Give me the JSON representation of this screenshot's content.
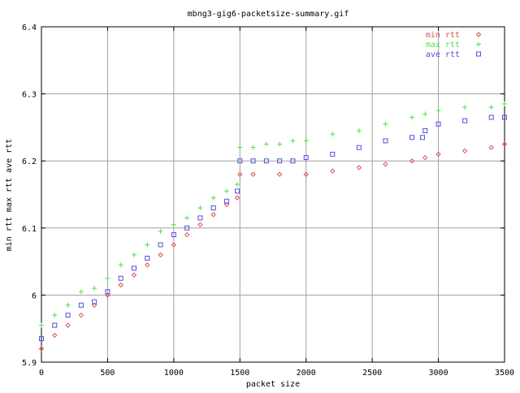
{
  "chart_data": {
    "type": "scatter",
    "title": "mbng3-gig6-packetsize-summary.gif",
    "xlabel": "packet size",
    "ylabel": "min rtt max rtt ave rtt",
    "xlim": [
      0,
      3500
    ],
    "ylim": [
      5.9,
      6.4
    ],
    "xticks": [
      "0",
      "500",
      "1000",
      "1500",
      "2000",
      "2500",
      "3000",
      "3500"
    ],
    "yticks": [
      "5.9",
      "6",
      "6.1",
      "6.2",
      "6.3",
      "6.4"
    ],
    "grid": true,
    "legend_position": "top-right",
    "series": [
      {
        "name": "min rtt",
        "marker": "diamond",
        "color": "#e05050",
        "x": [
          0,
          100,
          200,
          300,
          400,
          500,
          600,
          700,
          800,
          900,
          1000,
          1100,
          1200,
          1300,
          1400,
          1480,
          1500,
          1600,
          1800,
          2000,
          2200,
          2400,
          2600,
          2800,
          2900,
          3000,
          3200,
          3400,
          3500
        ],
        "y": [
          5.92,
          5.94,
          5.955,
          5.97,
          5.985,
          6.0,
          6.015,
          6.03,
          6.045,
          6.06,
          6.075,
          6.09,
          6.105,
          6.12,
          6.135,
          6.145,
          6.18,
          6.18,
          6.18,
          6.18,
          6.185,
          6.19,
          6.195,
          6.2,
          6.205,
          6.21,
          6.215,
          6.22,
          6.225
        ]
      },
      {
        "name": "max rtt",
        "marker": "plus",
        "color": "#50e050",
        "x": [
          0,
          100,
          200,
          300,
          400,
          500,
          600,
          700,
          800,
          900,
          1000,
          1100,
          1200,
          1300,
          1400,
          1480,
          1500,
          1600,
          1700,
          1800,
          1900,
          2000,
          2200,
          2400,
          2600,
          2800,
          2900,
          3000,
          3200,
          3400,
          3500
        ],
        "y": [
          5.955,
          5.97,
          5.985,
          6.005,
          6.01,
          6.025,
          6.045,
          6.06,
          6.075,
          6.095,
          6.105,
          6.115,
          6.13,
          6.145,
          6.155,
          6.165,
          6.22,
          6.22,
          6.225,
          6.225,
          6.23,
          6.23,
          6.24,
          6.245,
          6.255,
          6.265,
          6.27,
          6.275,
          6.28,
          6.28,
          6.285
        ]
      },
      {
        "name": "ave rtt",
        "marker": "square",
        "color": "#5050e0",
        "x": [
          0,
          100,
          200,
          300,
          400,
          500,
          600,
          700,
          800,
          900,
          1000,
          1100,
          1200,
          1300,
          1400,
          1480,
          1500,
          1600,
          1700,
          1800,
          1900,
          2000,
          2200,
          2400,
          2600,
          2800,
          2880,
          2900,
          3000,
          3200,
          3400,
          3500
        ],
        "y": [
          5.935,
          5.955,
          5.97,
          5.985,
          5.99,
          6.005,
          6.025,
          6.04,
          6.055,
          6.075,
          6.09,
          6.1,
          6.115,
          6.13,
          6.14,
          6.155,
          6.2,
          6.2,
          6.2,
          6.2,
          6.2,
          6.205,
          6.21,
          6.22,
          6.23,
          6.235,
          6.235,
          6.245,
          6.255,
          6.26,
          6.265,
          6.265
        ]
      }
    ]
  }
}
